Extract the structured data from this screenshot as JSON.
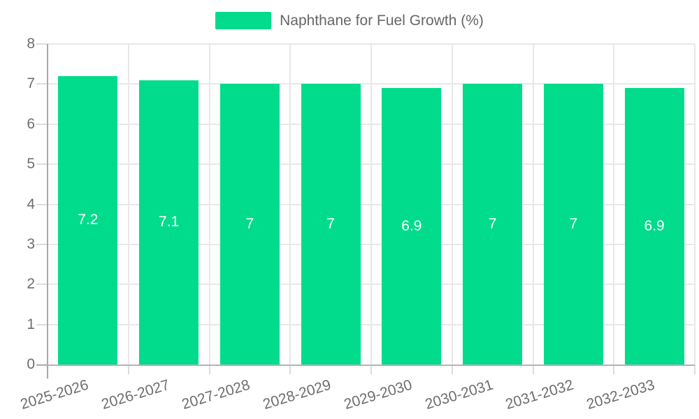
{
  "legend": {
    "label": "Naphthane for Fuel Growth (%)"
  },
  "chart_data": {
    "type": "bar",
    "title": "Naphthane for Fuel Growth (%)",
    "categories": [
      "2025-2026",
      "2026-2027",
      "2027-2028",
      "2028-2029",
      "2029-2030",
      "2030-2031",
      "2031-2032",
      "2032-2033"
    ],
    "series": [
      {
        "name": "Naphthane for Fuel Growth (%)",
        "values": [
          7.2,
          7.1,
          7,
          7,
          6.9,
          7,
          7,
          6.9
        ]
      }
    ],
    "values": [
      7.2,
      7.1,
      7,
      7,
      6.9,
      7,
      7,
      6.9
    ],
    "data_labels": [
      "7.2",
      "7.1",
      "7",
      "7",
      "6.9",
      "7",
      "7",
      "6.9"
    ],
    "xlabel": "",
    "ylabel": "",
    "ylim": [
      0,
      8
    ],
    "yticks": [
      0,
      1,
      2,
      3,
      4,
      5,
      6,
      7,
      8
    ],
    "grid": true,
    "legend_position": "top",
    "x_label_rotation": -17,
    "colors": {
      "bar": "#00DC8C",
      "bar_label": "#FFFFFF",
      "axis_text": "#6E6E6E",
      "legend_text": "#666666",
      "gridline": "#E8E8E8",
      "tick": "#DCDCDC",
      "axis_line_y": "#A8A8A8",
      "axis_line_x": "#B3B3B3",
      "background": "#FFFFFF"
    }
  }
}
